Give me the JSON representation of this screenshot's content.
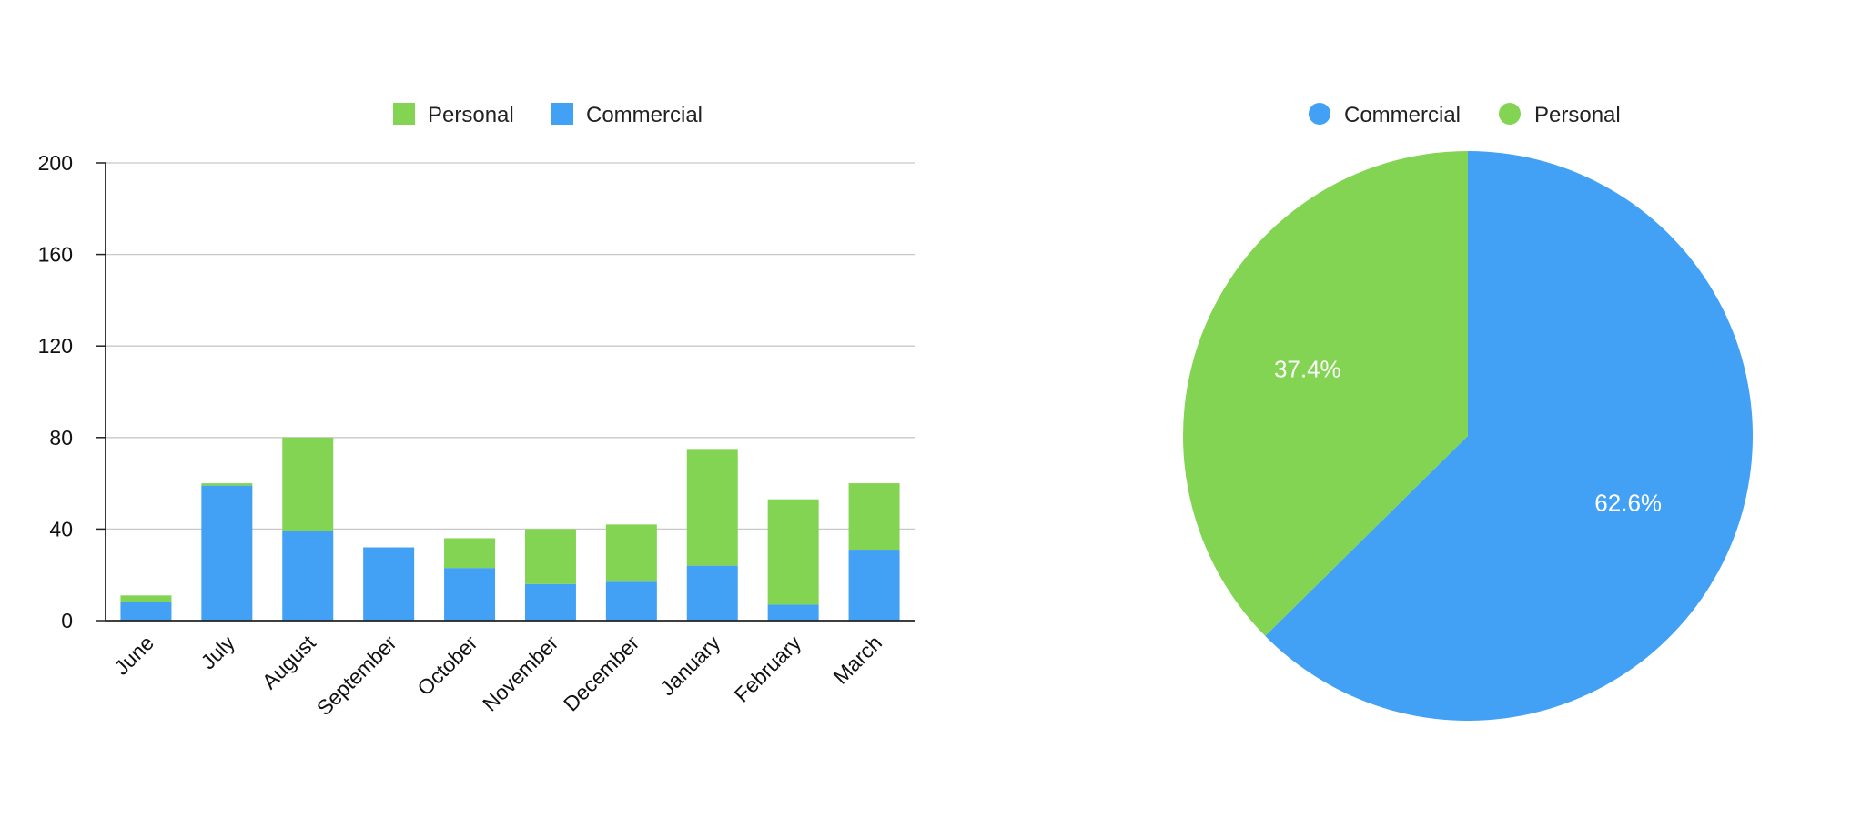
{
  "chart_data": [
    {
      "type": "bar",
      "stacked": true,
      "categories": [
        "June",
        "July",
        "August",
        "September",
        "October",
        "November",
        "December",
        "January",
        "February",
        "March"
      ],
      "series": [
        {
          "name": "Commercial",
          "color": "#42a0f5",
          "values": [
            8,
            59,
            39,
            32,
            23,
            16,
            17,
            24,
            7,
            31
          ]
        },
        {
          "name": "Personal",
          "color": "#82d452",
          "values": [
            3,
            1,
            41,
            0,
            13,
            24,
            25,
            51,
            46,
            29
          ]
        }
      ],
      "legend": {
        "position": "top",
        "items": [
          "Personal",
          "Commercial"
        ]
      },
      "ylim": [
        0,
        200
      ],
      "yticks": [
        "0",
        "40",
        "80",
        "120",
        "160",
        "200"
      ],
      "grid": true,
      "title": "",
      "xlabel": "",
      "ylabel": ""
    },
    {
      "type": "pie",
      "slices": [
        {
          "name": "Commercial",
          "value": 62.6,
          "label": "62.6%",
          "color": "#42a0f5"
        },
        {
          "name": "Personal",
          "value": 37.4,
          "label": "37.4%",
          "color": "#82d452"
        }
      ],
      "legend": {
        "position": "top",
        "items": [
          "Commercial",
          "Personal"
        ]
      },
      "title": ""
    }
  ]
}
